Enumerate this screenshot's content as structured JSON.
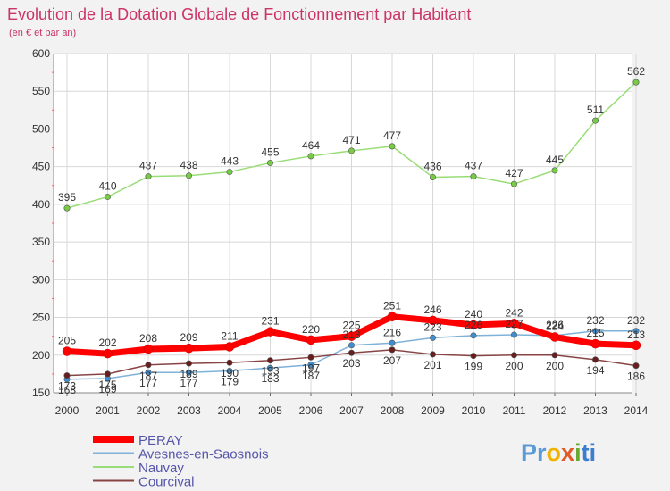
{
  "chart_data": {
    "type": "line",
    "title": "Evolution de la Dotation Globale de Fonctionnement par Habitant",
    "subtitle": "(en € et par an)",
    "xlabel": "",
    "ylabel": "",
    "ylim": [
      150,
      600
    ],
    "yticks": [
      150,
      200,
      250,
      300,
      350,
      400,
      450,
      500,
      550,
      600
    ],
    "grid": true,
    "legend_position": "bottom-left",
    "categories": [
      "2000",
      "2001",
      "2002",
      "2003",
      "2004",
      "2005",
      "2006",
      "2007",
      "2008",
      "2009",
      "2010",
      "2011",
      "2012",
      "2013",
      "2014"
    ],
    "series": [
      {
        "name": "PERAY",
        "color": "#ff0000",
        "values": [
          205,
          202,
          208,
          209,
          211,
          231,
          220,
          225,
          251,
          246,
          240,
          242,
          224,
          215,
          213
        ]
      },
      {
        "name": "Avesnes-en-Saosnois",
        "color": "#7fb2d9",
        "marker_color": "#3f8fd0",
        "values": [
          168,
          169,
          177,
          177,
          179,
          183,
          187,
          213,
          216,
          223,
          226,
          227,
          226,
          232,
          232
        ]
      },
      {
        "name": "Nauvay",
        "color": "#99dd77",
        "marker_color": "#77cc44",
        "values": [
          395,
          410,
          437,
          438,
          443,
          455,
          464,
          471,
          477,
          436,
          437,
          427,
          445,
          511,
          562
        ]
      },
      {
        "name": "Courcival",
        "color": "#884444",
        "marker_color": "#661e1e",
        "values": [
          173,
          175,
          187,
          189,
          190,
          193,
          197,
          203,
          207,
          201,
          199,
          200,
          200,
          194,
          186
        ]
      }
    ]
  },
  "logo": {
    "text": "Proxiti"
  }
}
